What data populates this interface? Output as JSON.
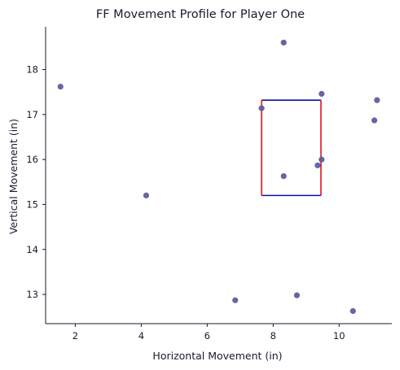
{
  "chart_data": {
    "type": "scatter",
    "title": "FF Movement Profile for Player One",
    "xlabel": "Horizontal Movement (in)",
    "ylabel": "Vertical Movement (in)",
    "xlim": [
      1.1,
      11.6
    ],
    "ylim": [
      12.35,
      18.95
    ],
    "xticks": [
      2,
      4,
      6,
      8,
      10
    ],
    "yticks": [
      13,
      14,
      15,
      16,
      17,
      18
    ],
    "grid": false,
    "points": [
      {
        "x": 1.55,
        "y": 17.62
      },
      {
        "x": 4.15,
        "y": 15.2
      },
      {
        "x": 6.85,
        "y": 12.87
      },
      {
        "x": 7.65,
        "y": 17.14
      },
      {
        "x": 8.32,
        "y": 18.6
      },
      {
        "x": 8.32,
        "y": 15.63
      },
      {
        "x": 8.72,
        "y": 12.98
      },
      {
        "x": 9.35,
        "y": 15.87
      },
      {
        "x": 9.47,
        "y": 16.0
      },
      {
        "x": 9.47,
        "y": 17.46
      },
      {
        "x": 10.42,
        "y": 12.63
      },
      {
        "x": 11.07,
        "y": 16.87
      },
      {
        "x": 11.15,
        "y": 17.32
      }
    ],
    "box": {
      "x0": 7.65,
      "x1": 9.45,
      "y0": 15.2,
      "y1": 17.32
    },
    "colors": {
      "points": "#5b5f9e",
      "box_horizontal": "#1010a0",
      "box_vertical": "#e0101a",
      "text": "#1a1a2e"
    }
  }
}
